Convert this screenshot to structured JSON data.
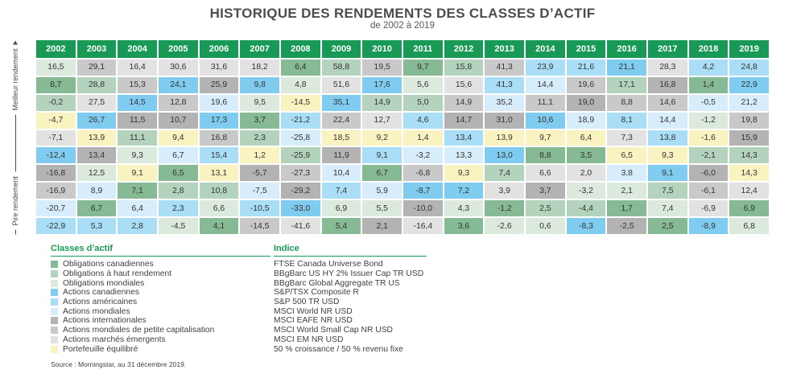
{
  "title": "HISTORIQUE DES RENDEMENTS DES CLASSES D’ACTIF",
  "subtitle": "de 2002 à 2019",
  "y_axis": {
    "bottom_dash": "–",
    "worse": "Pire rendement",
    "better": "Meilleur rendement"
  },
  "legend": {
    "col1_header": "Classes d’actif",
    "col2_header": "Indice"
  },
  "source": "Source : Morningstar, au 31 décembre 2019.",
  "header_color": "#189a56",
  "asset_classes": [
    {
      "id": "canbond",
      "label": "Obligations canadiennes",
      "indice": "FTSE Canada Universe Bond",
      "color": "#86ba94"
    },
    {
      "id": "hy",
      "label": "Obligations à haut rendement",
      "indice": "BBgBarc US HY 2% Issuer Cap TR USD",
      "color": "#b4d3bc"
    },
    {
      "id": "globalbond",
      "label": "Obligations mondiales",
      "indice": "BBgBarc Global Aggregate TR US",
      "color": "#dceade"
    },
    {
      "id": "tsx",
      "label": "Actions canadiennes",
      "indice": "S&P/TSX Composite R",
      "color": "#80ccf0"
    },
    {
      "id": "sp500",
      "label": "Actions américaines",
      "indice": "S&P 500 TR USD",
      "color": "#aadef6"
    },
    {
      "id": "world",
      "label": "Actions mondiales",
      "indice": "MSCI World NR USD",
      "color": "#d8edfb"
    },
    {
      "id": "eafe",
      "label": "Actions internationales",
      "indice": "MSCI EAFE NR USD",
      "color": "#b3b3b3"
    },
    {
      "id": "smallcap",
      "label": "Actions mondiales de petite capitalisation",
      "indice": "MSCI World Small Cap NR USD",
      "color": "#c9c9c9"
    },
    {
      "id": "em",
      "label": "Actions marchés émergents",
      "indice": "MSCI EM NR USD",
      "color": "#e2e2e2"
    },
    {
      "id": "balanced",
      "label": "Portefeuille équilibré",
      "indice": "50 % croissance / 50 % revenu fixe",
      "color": "#f9f2c1"
    }
  ],
  "chart_data": {
    "type": "table",
    "title": "HISTORIQUE DES RENDEMENTS DES CLASSES D’ACTIF",
    "subtitle": "de 2002 à 2019",
    "note": "Chaque colonne classe les 10 classes d’actif du meilleur au pire rendement (%) pour l’année.",
    "years": [
      "2002",
      "2003",
      "2004",
      "2005",
      "2006",
      "2007",
      "2008",
      "2009",
      "2010",
      "2011",
      "2012",
      "2013",
      "2014",
      "2015",
      "2016",
      "2017",
      "2018",
      "2019"
    ],
    "columns": [
      {
        "year": "2002",
        "cells": [
          [
            "globalbond",
            "16,5"
          ],
          [
            "canbond",
            "8,7"
          ],
          [
            "hy",
            "-0,2"
          ],
          [
            "balanced",
            "-4,7"
          ],
          [
            "em",
            "-7,1"
          ],
          [
            "tsx",
            "-12,4"
          ],
          [
            "eafe",
            "-16,8"
          ],
          [
            "smallcap",
            "-16,9"
          ],
          [
            "world",
            "-20,7"
          ],
          [
            "sp500",
            "-22,9"
          ]
        ]
      },
      {
        "year": "2003",
        "cells": [
          [
            "smallcap",
            "29,1"
          ],
          [
            "hy",
            "28,8"
          ],
          [
            "em",
            "27,5"
          ],
          [
            "tsx",
            "26,7"
          ],
          [
            "balanced",
            "13,9"
          ],
          [
            "eafe",
            "13,4"
          ],
          [
            "globalbond",
            "12,5"
          ],
          [
            "world",
            "8,9"
          ],
          [
            "canbond",
            "6,7"
          ],
          [
            "sp500",
            "5,3"
          ]
        ]
      },
      {
        "year": "2004",
        "cells": [
          [
            "em",
            "16,4"
          ],
          [
            "smallcap",
            "15,3"
          ],
          [
            "tsx",
            "14,5"
          ],
          [
            "eafe",
            "11,5"
          ],
          [
            "hy",
            "11,1"
          ],
          [
            "globalbond",
            "9,3"
          ],
          [
            "balanced",
            "9,1"
          ],
          [
            "canbond",
            "7,1"
          ],
          [
            "world",
            "6,4"
          ],
          [
            "sp500",
            "2,8"
          ]
        ]
      },
      {
        "year": "2005",
        "cells": [
          [
            "em",
            "30,6"
          ],
          [
            "tsx",
            "24,1"
          ],
          [
            "smallcap",
            "12,8"
          ],
          [
            "eafe",
            "10,7"
          ],
          [
            "balanced",
            "9,4"
          ],
          [
            "world",
            "6,7"
          ],
          [
            "canbond",
            "6,5"
          ],
          [
            "hy",
            "2,8"
          ],
          [
            "sp500",
            "2,3"
          ],
          [
            "globalbond",
            "-4,5"
          ]
        ]
      },
      {
        "year": "2006",
        "cells": [
          [
            "em",
            "31,6"
          ],
          [
            "eafe",
            "25,9"
          ],
          [
            "world",
            "19,6"
          ],
          [
            "tsx",
            "17,3"
          ],
          [
            "smallcap",
            "16,8"
          ],
          [
            "sp500",
            "15,4"
          ],
          [
            "balanced",
            "13,1"
          ],
          [
            "hy",
            "10,8"
          ],
          [
            "globalbond",
            "6,6"
          ],
          [
            "canbond",
            "4,1"
          ]
        ]
      },
      {
        "year": "2007",
        "cells": [
          [
            "em",
            "18,2"
          ],
          [
            "tsx",
            "9,8"
          ],
          [
            "globalbond",
            "9,5"
          ],
          [
            "canbond",
            "3,7"
          ],
          [
            "hy",
            "2,3"
          ],
          [
            "balanced",
            "1,2"
          ],
          [
            "eafe",
            "-5,7"
          ],
          [
            "world",
            "-7,5"
          ],
          [
            "sp500",
            "-10,5"
          ],
          [
            "smallcap",
            "-14,5"
          ]
        ]
      },
      {
        "year": "2008",
        "cells": [
          [
            "canbond",
            "6,4"
          ],
          [
            "globalbond",
            "4,8"
          ],
          [
            "balanced",
            "-14,5"
          ],
          [
            "sp500",
            "-21,2"
          ],
          [
            "world",
            "-25,8"
          ],
          [
            "hy",
            "-25,9"
          ],
          [
            "smallcap",
            "-27,3"
          ],
          [
            "eafe",
            "-29,2"
          ],
          [
            "tsx",
            "-33,0"
          ],
          [
            "em",
            "-41,6"
          ]
        ]
      },
      {
        "year": "2009",
        "cells": [
          [
            "hy",
            "58,8"
          ],
          [
            "em",
            "51,6"
          ],
          [
            "tsx",
            "35,1"
          ],
          [
            "smallcap",
            "22,4"
          ],
          [
            "balanced",
            "18,5"
          ],
          [
            "eafe",
            "11,9"
          ],
          [
            "world",
            "10,4"
          ],
          [
            "sp500",
            "7,4"
          ],
          [
            "globalbond",
            "6,9"
          ],
          [
            "canbond",
            "5,4"
          ]
        ]
      },
      {
        "year": "2010",
        "cells": [
          [
            "smallcap",
            "19,5"
          ],
          [
            "tsx",
            "17,6"
          ],
          [
            "hy",
            "14,9"
          ],
          [
            "em",
            "12,7"
          ],
          [
            "balanced",
            "9,2"
          ],
          [
            "sp500",
            "9,1"
          ],
          [
            "canbond",
            "6,7"
          ],
          [
            "world",
            "5,9"
          ],
          [
            "globalbond",
            "5,5"
          ],
          [
            "eafe",
            "2,1"
          ]
        ]
      },
      {
        "year": "2011",
        "cells": [
          [
            "canbond",
            "9,7"
          ],
          [
            "globalbond",
            "5,6"
          ],
          [
            "hy",
            "5,0"
          ],
          [
            "sp500",
            "4,6"
          ],
          [
            "balanced",
            "1,4"
          ],
          [
            "world",
            "-3,2"
          ],
          [
            "smallcap",
            "-6,8"
          ],
          [
            "tsx",
            "-8,7"
          ],
          [
            "eafe",
            "-10,0"
          ],
          [
            "em",
            "-16,4"
          ]
        ]
      },
      {
        "year": "2012",
        "cells": [
          [
            "hy",
            "15,8"
          ],
          [
            "em",
            "15,6"
          ],
          [
            "smallcap",
            "14,9"
          ],
          [
            "eafe",
            "14,7"
          ],
          [
            "sp500",
            "13,4"
          ],
          [
            "world",
            "13,3"
          ],
          [
            "balanced",
            "9,3"
          ],
          [
            "tsx",
            "7,2"
          ],
          [
            "globalbond",
            "4,3"
          ],
          [
            "canbond",
            "3,6"
          ]
        ]
      },
      {
        "year": "2013",
        "cells": [
          [
            "smallcap",
            "41,3"
          ],
          [
            "sp500",
            "41,3"
          ],
          [
            "world",
            "35,2"
          ],
          [
            "eafe",
            "31,0"
          ],
          [
            "balanced",
            "13,9"
          ],
          [
            "tsx",
            "13,0"
          ],
          [
            "hy",
            "7,4"
          ],
          [
            "em",
            "3,9"
          ],
          [
            "canbond",
            "-1,2"
          ],
          [
            "globalbond",
            "-2,6"
          ]
        ]
      },
      {
        "year": "2014",
        "cells": [
          [
            "sp500",
            "23,9"
          ],
          [
            "world",
            "14,4"
          ],
          [
            "smallcap",
            "11,1"
          ],
          [
            "tsx",
            "10,6"
          ],
          [
            "balanced",
            "9,7"
          ],
          [
            "canbond",
            "8,8"
          ],
          [
            "em",
            "6,6"
          ],
          [
            "eafe",
            "3,7"
          ],
          [
            "hy",
            "2,5"
          ],
          [
            "globalbond",
            "0,6"
          ]
        ]
      },
      {
        "year": "2015",
        "cells": [
          [
            "sp500",
            "21,6"
          ],
          [
            "smallcap",
            "19,6"
          ],
          [
            "eafe",
            "19,0"
          ],
          [
            "world",
            "18,9"
          ],
          [
            "balanced",
            "6,4"
          ],
          [
            "canbond",
            "3,5"
          ],
          [
            "em",
            "2,0"
          ],
          [
            "globalbond",
            "-3,2"
          ],
          [
            "hy",
            "-4,4"
          ],
          [
            "tsx",
            "-8,3"
          ]
        ]
      },
      {
        "year": "2016",
        "cells": [
          [
            "tsx",
            "21,1"
          ],
          [
            "hy",
            "17,1"
          ],
          [
            "smallcap",
            "8,8"
          ],
          [
            "sp500",
            "8,1"
          ],
          [
            "em",
            "7,3"
          ],
          [
            "balanced",
            "6,5"
          ],
          [
            "world",
            "3,8"
          ],
          [
            "globalbond",
            "2,1"
          ],
          [
            "canbond",
            "1,7"
          ],
          [
            "eafe",
            "-2,5"
          ]
        ]
      },
      {
        "year": "2017",
        "cells": [
          [
            "em",
            "28,3"
          ],
          [
            "eafe",
            "16,8"
          ],
          [
            "smallcap",
            "14,6"
          ],
          [
            "world",
            "14,4"
          ],
          [
            "sp500",
            "13,8"
          ],
          [
            "balanced",
            "9,3"
          ],
          [
            "tsx",
            "9,1"
          ],
          [
            "hy",
            "7,5"
          ],
          [
            "globalbond",
            "7,4"
          ],
          [
            "canbond",
            "2,5"
          ]
        ]
      },
      {
        "year": "2018",
        "cells": [
          [
            "sp500",
            "4,2"
          ],
          [
            "canbond",
            "1,4"
          ],
          [
            "world",
            "-0,5"
          ],
          [
            "globalbond",
            "-1,2"
          ],
          [
            "balanced",
            "-1,6"
          ],
          [
            "hy",
            "-2,1"
          ],
          [
            "eafe",
            "-6,0"
          ],
          [
            "smallcap",
            "-6,1"
          ],
          [
            "em",
            "-6,9"
          ],
          [
            "tsx",
            "-8,9"
          ]
        ]
      },
      {
        "year": "2019",
        "cells": [
          [
            "sp500",
            "24,8"
          ],
          [
            "tsx",
            "22,9"
          ],
          [
            "world",
            "21,2"
          ],
          [
            "smallcap",
            "19,8"
          ],
          [
            "eafe",
            "15,9"
          ],
          [
            "hy",
            "14,3"
          ],
          [
            "balanced",
            "14,3"
          ],
          [
            "em",
            "12,4"
          ],
          [
            "canbond",
            "6,9"
          ],
          [
            "globalbond",
            "6,8"
          ]
        ]
      }
    ]
  }
}
